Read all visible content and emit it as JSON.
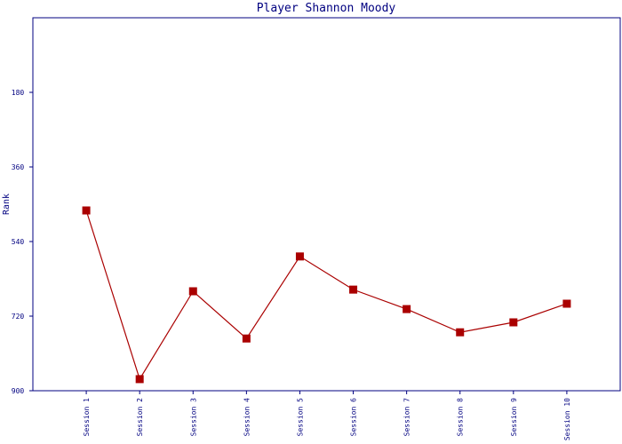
{
  "chart_data": {
    "type": "line",
    "title": "Player Shannon Moody",
    "y_label": "Rank",
    "categories": [
      "Session 1",
      "Session 2",
      "Session 3",
      "Session 4",
      "Session 5",
      "Session 6",
      "Session 7",
      "Session 8",
      "Session 9",
      "Session 10"
    ],
    "series": [
      {
        "name": "Rank",
        "color": "#aa0000",
        "values": [
          465,
          872,
          660,
          774,
          576,
          656,
          703,
          759,
          735,
          690
        ]
      }
    ],
    "ylim": [
      900,
      0
    ],
    "yticks": [
      180,
      360,
      540,
      720,
      900
    ],
    "inverted": true
  }
}
